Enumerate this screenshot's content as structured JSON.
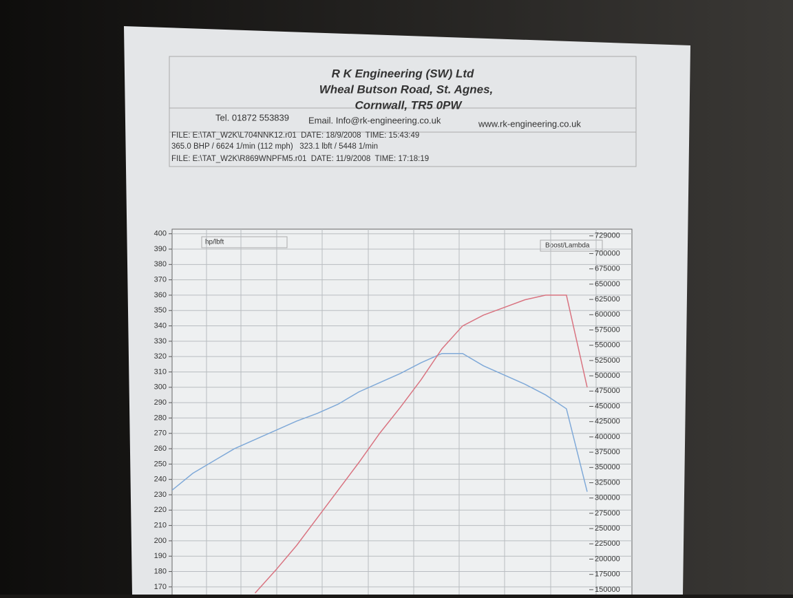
{
  "header": {
    "company": "R K Engineering (SW) Ltd",
    "address": [
      "Wheal Butson Road, St. Agnes,",
      "Cornwall, TR5 0PW"
    ],
    "phone": "Tel. 01872 553839",
    "email": "Email. Info@rk-engineering.co.uk",
    "web": "www.rk-engineering.co.uk",
    "runs": [
      "FILE: E:\\TAT_W2K\\L704NNK12.r01  DATE: 18/9/2008  TIME: 15:43:49",
      "365.0 BHP / 6624 1/min (112 mph)   323.1 lbft / 5448 1/min",
      "FILE: E:\\TAT_W2K\\R869WNPFM5.r01  DATE: 11/9/2008  TIME: 17:18:19"
    ]
  },
  "chart_data": {
    "type": "line",
    "y_label": "hp/lbft",
    "y2_label": "Boost/Lambda",
    "categories": [
      null,
      null,
      null,
      null,
      null,
      null,
      null,
      null,
      null,
      null,
      null,
      null,
      null,
      null,
      null,
      null,
      null,
      null,
      null,
      null,
      null
    ],
    "series": [
      {
        "color": "#7fa9d8",
        "values": [
          233,
          244,
          252,
          260,
          266,
          272,
          278,
          283,
          289,
          297,
          303,
          309,
          316,
          322,
          322,
          314,
          308,
          302,
          295,
          286,
          232
        ]
      },
      {
        "color": "#d97380",
        "values": [
          null,
          null,
          null,
          null,
          166,
          181,
          197,
          215,
          233,
          251,
          270,
          287,
          305,
          325,
          340,
          347,
          352,
          357,
          360,
          360,
          300
        ]
      }
    ],
    "ylim": [
      165,
      403
    ],
    "yticks": [
      400,
      390,
      380,
      370,
      360,
      350,
      340,
      330,
      320,
      310,
      300,
      290,
      280,
      270,
      260,
      250,
      240,
      230,
      220,
      210,
      200,
      190,
      180,
      170
    ],
    "y2lim": [
      142000,
      740000
    ],
    "y2ticks": [
      729000,
      700000,
      675000,
      650000,
      625000,
      600000,
      575000,
      550000,
      525000,
      500000,
      475000,
      450000,
      425000,
      400000,
      375000,
      350000,
      325000,
      300000,
      275000,
      250000,
      225000,
      200000,
      175000,
      150000
    ],
    "grid": true
  }
}
